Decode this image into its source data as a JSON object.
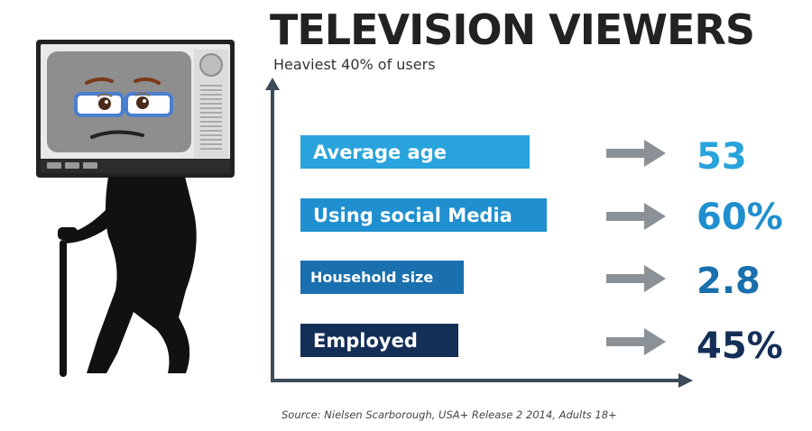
{
  "title": "TELEVISION VIEWERS",
  "subtitle": "Heaviest 40% of users",
  "stats": [
    {
      "label": "Average age",
      "value": "53",
      "label_color": "#29a3dc",
      "value_color": "#29a3dc"
    },
    {
      "label": "Using social Media",
      "value": "60%",
      "label_color": "#1f8fcf",
      "value_color": "#1f8fcf"
    },
    {
      "label": "Household size",
      "value": "2.8",
      "label_color": "#1a6fae",
      "value_color": "#1a6fae"
    },
    {
      "label": "Employed",
      "value": "45%",
      "label_color": "#142f57",
      "value_color": "#142f57"
    }
  ],
  "source": "Source: Nielsen Scarborough, USA+ Release 2 2014, Adults 18+",
  "colors": {
    "axis": "#3d4a5c",
    "arrow": "#8a9297",
    "tv_frame": "#222222",
    "tv_screen": "#8e8e8e",
    "figure": "#111111",
    "glasses": "#4a7fcf"
  },
  "icons": [
    "old-man-tv-head-illustration",
    "walking-cane-icon",
    "right-arrow-icon"
  ]
}
